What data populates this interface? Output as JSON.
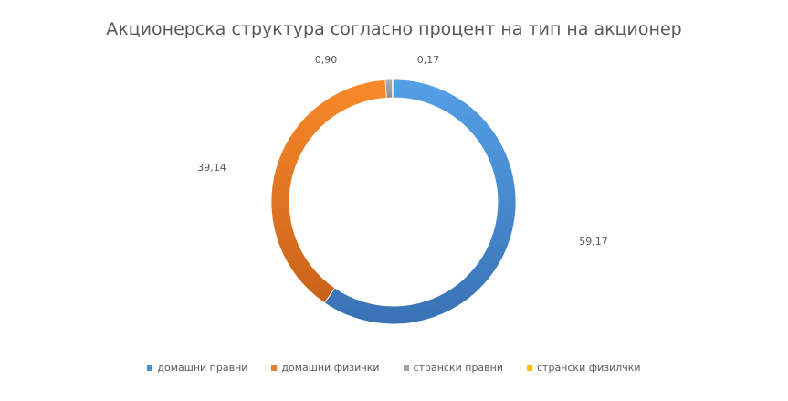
{
  "chart_data": {
    "type": "pie",
    "variant": "doughnut",
    "title": "Акционерска структура согласно процент на тип на акционер",
    "categories": [
      "домашни правни",
      "домашни физички",
      "странски правни",
      "странски физилчки"
    ],
    "values": [
      59.17,
      39.14,
      0.9,
      0.17
    ],
    "data_labels": [
      "59,17",
      "39,14",
      "0,90",
      "0,17"
    ],
    "colors": [
      "#4a90d0",
      "#ed7d31",
      "#a5a5a5",
      "#ffc000"
    ],
    "legend_position": "bottom"
  }
}
